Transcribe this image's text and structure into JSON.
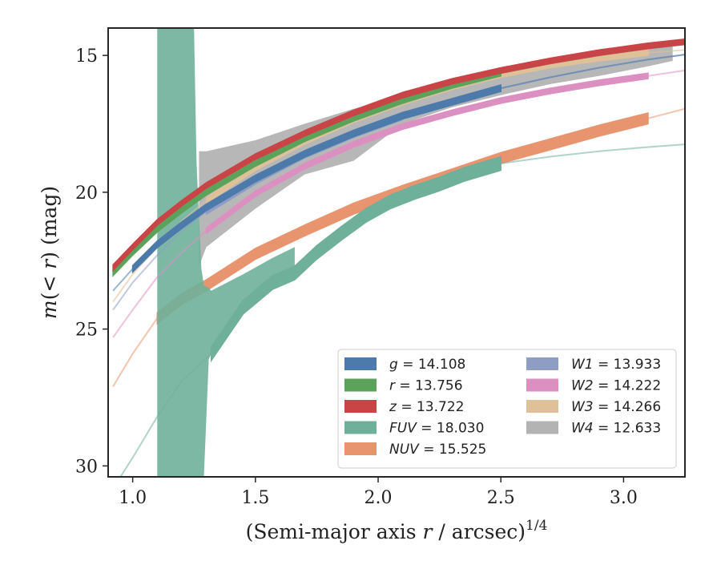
{
  "chart_data": {
    "type": "line",
    "xlabel": "(Semi-major axis r / arcsec)",
    "xlabel_var": "r",
    "xlabel_pre": "(Semi-major axis ",
    "xlabel_post": " / arcsec)",
    "xlabel_sup": "1/4",
    "ylabel_pre": "m(",
    "ylabel_var": "< r",
    "ylabel_post": ") (mag)",
    "xlim": [
      0.9,
      3.25
    ],
    "ylim": [
      30.4,
      14.0
    ],
    "y_inverted": true,
    "grid": false,
    "legend_position": "lower-right",
    "xticks": [
      1.0,
      1.5,
      2.0,
      2.5,
      3.0
    ],
    "xtick_labels": [
      "1.0",
      "1.5",
      "2.0",
      "2.5",
      "3.0"
    ],
    "yticks": [
      15,
      20,
      25,
      30
    ],
    "ytick_labels": [
      "15",
      "20",
      "25",
      "30"
    ],
    "series": [
      {
        "name": "g = 14.108",
        "color": "#4c7aab",
        "x": [
          0.92,
          1.0,
          1.1,
          1.2,
          1.3,
          1.5,
          1.7,
          1.9,
          2.1,
          2.3,
          2.5,
          2.7,
          2.9,
          3.1,
          3.25
        ],
        "y": [
          23.6,
          22.8,
          21.9,
          21.2,
          20.55,
          19.5,
          18.6,
          17.85,
          17.2,
          16.7,
          16.2,
          15.8,
          15.45,
          15.15,
          14.97
        ],
        "halfwidth": 0.12,
        "solid_range": [
          1.0,
          2.5
        ]
      },
      {
        "name": "r = 13.756",
        "color": "#5ba35b",
        "x": [
          0.92,
          1.0,
          1.1,
          1.2,
          1.3,
          1.5,
          1.7,
          1.9,
          2.1,
          2.3,
          2.5,
          2.7,
          2.9,
          3.1,
          3.25
        ],
        "y": [
          22.95,
          22.2,
          21.35,
          20.65,
          20.0,
          18.95,
          18.05,
          17.3,
          16.65,
          16.1,
          15.65,
          15.3,
          15.0,
          14.75,
          14.6
        ],
        "halfwidth": 0.1,
        "solid_range": [
          0.92,
          2.5
        ]
      },
      {
        "name": "z = 13.722",
        "color": "#c94447",
        "x": [
          0.92,
          1.0,
          1.1,
          1.2,
          1.3,
          1.5,
          1.7,
          1.9,
          2.1,
          2.3,
          2.5,
          2.7,
          2.9,
          3.1,
          3.25
        ],
        "y": [
          22.75,
          22.0,
          21.1,
          20.4,
          19.75,
          18.7,
          17.85,
          17.1,
          16.45,
          15.95,
          15.55,
          15.2,
          14.9,
          14.65,
          14.5
        ],
        "halfwidth": 0.1,
        "solid_range": [
          0.92,
          3.25
        ]
      },
      {
        "name": "FUV = 18.030",
        "color": "#6fb09a",
        "x": [
          0.95,
          1.0,
          1.1,
          1.2,
          1.32,
          1.45,
          1.57,
          1.66,
          1.75,
          1.85,
          1.95,
          2.05,
          2.15,
          2.25,
          2.35,
          2.5,
          2.7,
          2.9,
          3.1,
          3.25
        ],
        "y": [
          30.4,
          29.7,
          28.2,
          26.9,
          25.9,
          24.2,
          23.3,
          22.95,
          22.2,
          21.5,
          20.85,
          20.35,
          20.0,
          19.7,
          19.35,
          18.95,
          18.7,
          18.5,
          18.35,
          18.25
        ],
        "halfwidth": 0.25,
        "solid_range": [
          1.32,
          2.5
        ]
      },
      {
        "name": "NUV = 15.525",
        "color": "#e8956f",
        "x": [
          0.92,
          1.0,
          1.1,
          1.2,
          1.3,
          1.5,
          1.7,
          1.9,
          2.1,
          2.3,
          2.5,
          2.7,
          2.9,
          3.1,
          3.25
        ],
        "y": [
          27.1,
          25.9,
          24.6,
          23.9,
          23.4,
          22.25,
          21.4,
          20.6,
          19.95,
          19.35,
          18.75,
          18.25,
          17.75,
          17.3,
          16.95
        ],
        "halfwidth": 0.2,
        "solid_range": [
          1.1,
          3.1
        ]
      },
      {
        "name": "W1 = 13.933",
        "color": "#8e9dc4",
        "x": [
          0.92,
          1.0,
          1.1,
          1.2,
          1.3,
          1.5,
          1.7,
          1.9,
          2.1,
          2.3,
          2.5,
          2.7,
          2.9,
          3.1,
          3.25
        ],
        "y": [
          24.3,
          23.3,
          22.3,
          21.4,
          20.7,
          19.6,
          18.65,
          17.9,
          17.25,
          16.7,
          16.2,
          15.8,
          15.45,
          15.15,
          14.97
        ],
        "halfwidth": 0.1,
        "solid_range": [
          1.3,
          2.1
        ]
      },
      {
        "name": "W2 = 14.222",
        "color": "#dc8fc1",
        "x": [
          0.92,
          1.0,
          1.1,
          1.2,
          1.3,
          1.5,
          1.7,
          1.9,
          2.1,
          2.3,
          2.5,
          2.7,
          2.9,
          3.1,
          3.25
        ],
        "y": [
          25.3,
          24.3,
          23.1,
          22.2,
          21.4,
          20.05,
          19.05,
          18.25,
          17.6,
          17.1,
          16.65,
          16.3,
          16.0,
          15.75,
          15.55
        ],
        "halfwidth": 0.1,
        "solid_range": [
          1.3,
          3.1
        ]
      },
      {
        "name": "W3 = 14.266",
        "color": "#dfc199",
        "x": [
          0.92,
          1.0,
          1.1,
          1.2,
          1.3,
          1.5,
          1.7,
          1.9,
          2.1,
          2.3,
          2.5,
          2.7,
          2.9,
          3.1,
          3.25
        ],
        "y": [
          24.0,
          23.0,
          22.0,
          21.05,
          20.3,
          19.1,
          18.15,
          17.35,
          16.7,
          16.15,
          15.7,
          15.35,
          15.1,
          14.9,
          14.8
        ],
        "halfwidth": 0.1,
        "solid_range": [
          1.3,
          3.1
        ]
      },
      {
        "name": "W4 = 12.633",
        "color": "#b3b3b3",
        "x": [
          1.27,
          1.3,
          1.5,
          1.7,
          1.9,
          2.1,
          2.3,
          2.5,
          2.7,
          2.9,
          3.1,
          3.2
        ],
        "y_upper": [
          18.5,
          18.5,
          18.1,
          17.5,
          16.95,
          16.5,
          16.05,
          15.7,
          15.35,
          15.05,
          14.75,
          14.65
        ],
        "y_lower": [
          22.7,
          22.0,
          20.6,
          19.35,
          18.85,
          17.5,
          16.9,
          16.45,
          16.05,
          15.75,
          15.4,
          15.2
        ],
        "shaded": true
      }
    ],
    "fuv_inner_band": {
      "x": [
        1.1,
        1.2,
        1.25,
        1.26,
        1.28,
        1.29,
        1.31,
        1.32,
        1.45,
        1.57,
        1.66
      ],
      "y_upper": [
        14.0,
        14.0,
        14.0,
        18.9,
        22.8,
        23.4,
        23.5,
        23.6,
        23.0,
        22.4,
        22.0
      ],
      "y_lower": [
        30.4,
        30.4,
        30.4,
        30.4,
        30.4,
        30.4,
        26.1,
        25.9,
        24.2,
        23.3,
        22.95
      ]
    },
    "legend": {
      "columns": [
        [
          {
            "var": "g",
            "value": "14.108",
            "color": "#4c7aab"
          },
          {
            "var": "r",
            "value": "13.756",
            "color": "#5ba35b"
          },
          {
            "var": "z",
            "value": "13.722",
            "color": "#c94447"
          },
          {
            "var": "FUV",
            "value": "18.030",
            "color": "#6fb09a"
          },
          {
            "var": "NUV",
            "value": "15.525",
            "color": "#e8956f"
          }
        ],
        [
          {
            "var": "W1",
            "value": "13.933",
            "color": "#8e9dc4"
          },
          {
            "var": "W2",
            "value": "14.222",
            "color": "#dc8fc1"
          },
          {
            "var": "W3",
            "value": "14.266",
            "color": "#dfc199"
          },
          {
            "var": "W4",
            "value": "12.633",
            "color": "#b3b3b3"
          }
        ]
      ]
    }
  }
}
